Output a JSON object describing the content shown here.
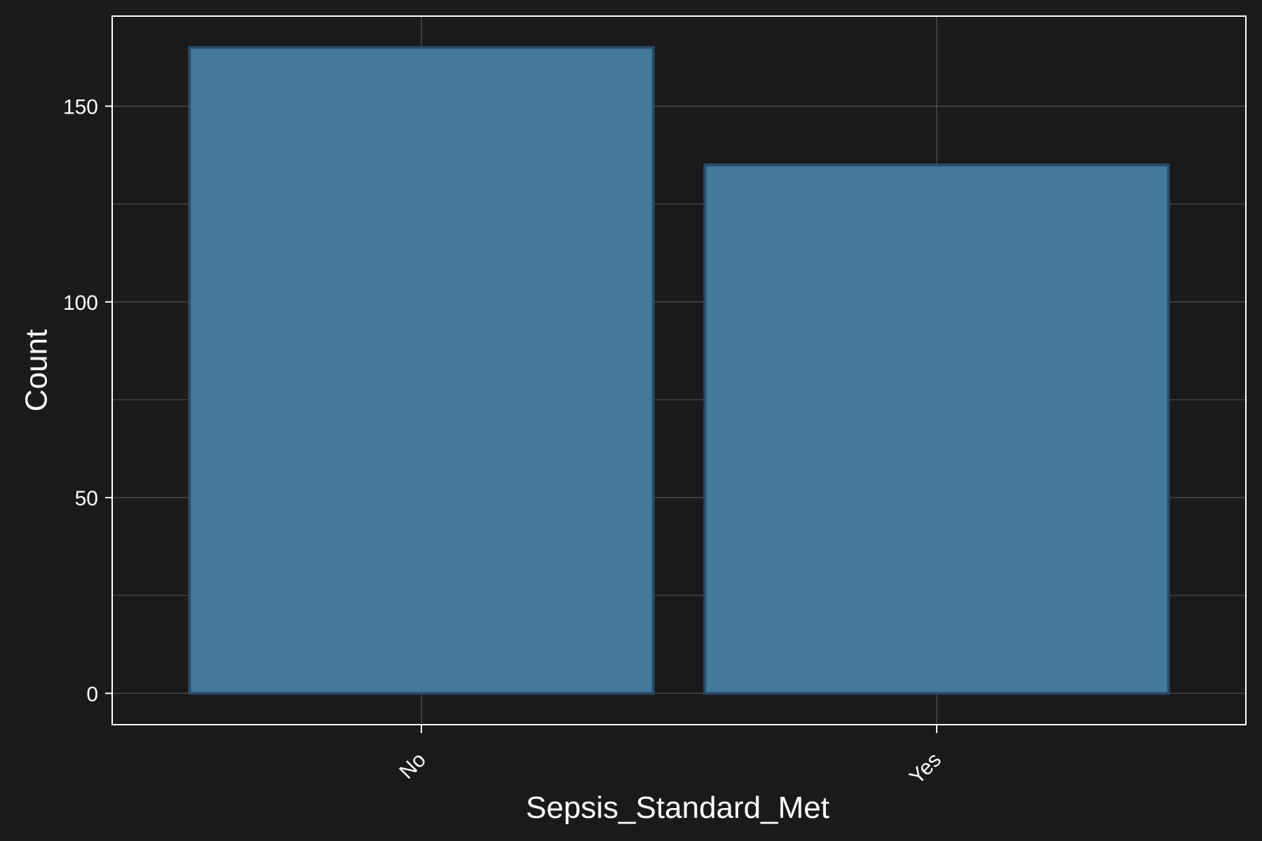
{
  "chart_data": {
    "type": "bar",
    "title": "",
    "xlabel": "Sepsis_Standard_Met",
    "ylabel": "Count",
    "categories": [
      "No",
      "Yes"
    ],
    "values": [
      165,
      135
    ],
    "ylim": [
      -8,
      173
    ],
    "yticks": [
      0,
      50,
      100,
      150
    ],
    "grid": true,
    "legend": "none",
    "colors": {
      "background": "#1a1a1a",
      "panel_border": "#ffffff",
      "grid": "#555555",
      "bar_fill": "#437a9c",
      "bar_stroke": "#2b4a68",
      "text": "#ffffff"
    }
  }
}
